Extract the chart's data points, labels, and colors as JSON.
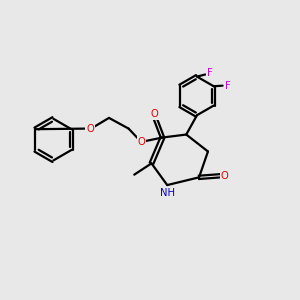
{
  "background_color": "#e8e8e8",
  "bond_color": "#000000",
  "oxygen_color": "#dd0000",
  "nitrogen_color": "#0000cc",
  "fluorine_color": "#cc00cc",
  "line_width": 1.6,
  "figsize": [
    3.0,
    3.0
  ],
  "dpi": 100,
  "xlim": [
    0,
    10
  ],
  "ylim": [
    0,
    10
  ]
}
